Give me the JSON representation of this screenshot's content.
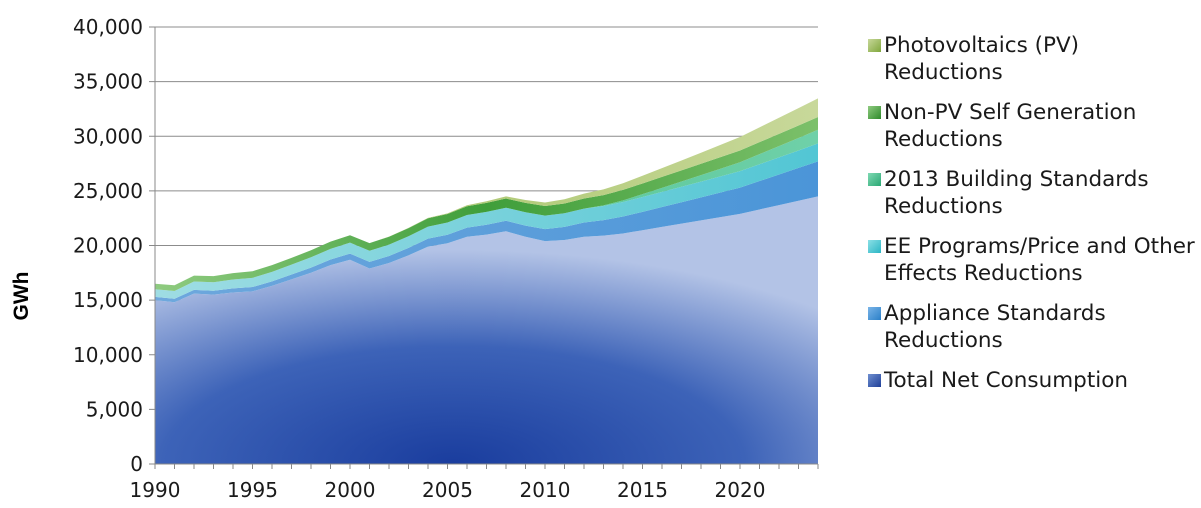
{
  "chart_data": {
    "type": "area",
    "stacked": true,
    "ylabel": "GWh",
    "xlabel": "",
    "ylim": [
      0,
      40000
    ],
    "xlim": [
      1990,
      2024
    ],
    "y_ticks": [
      "0",
      "5,000",
      "10,000",
      "15,000",
      "20,000",
      "25,000",
      "30,000",
      "35,000",
      "40,000"
    ],
    "y_tick_values": [
      0,
      5000,
      10000,
      15000,
      20000,
      25000,
      30000,
      35000,
      40000
    ],
    "x_ticks": [
      "1990",
      "1995",
      "2000",
      "2005",
      "2010",
      "2015",
      "2020"
    ],
    "x_tick_values": [
      1990,
      1995,
      2000,
      2005,
      2010,
      2015,
      2020
    ],
    "grid": "horizontal",
    "legend_position": "right",
    "x": [
      1990,
      1991,
      1992,
      1993,
      1994,
      1995,
      1996,
      1997,
      1998,
      1999,
      2000,
      2001,
      2002,
      2003,
      2004,
      2005,
      2006,
      2007,
      2008,
      2009,
      2010,
      2011,
      2012,
      2013,
      2014,
      2015,
      2016,
      2017,
      2018,
      2019,
      2020,
      2021,
      2022,
      2023,
      2024
    ],
    "series": [
      {
        "name": "Total Net Consumption",
        "color": "#2e56a8",
        "values": [
          15000,
          14800,
          15600,
          15500,
          15700,
          15800,
          16300,
          16900,
          17500,
          18200,
          18700,
          17900,
          18400,
          19100,
          19900,
          20200,
          20800,
          21000,
          21300,
          20800,
          20400,
          20500,
          20800,
          20900,
          21100,
          21400,
          21700,
          22000,
          22300,
          22600,
          22900,
          23300,
          23700,
          24100,
          24500
        ]
      },
      {
        "name": "Appliance Standards Reductions",
        "color": "#3a8fd6",
        "values": [
          300,
          320,
          340,
          360,
          380,
          400,
          420,
          450,
          480,
          520,
          560,
          600,
          640,
          680,
          730,
          780,
          840,
          900,
          960,
          1020,
          1100,
          1200,
          1300,
          1420,
          1550,
          1680,
          1820,
          1960,
          2100,
          2250,
          2400,
          2600,
          2800,
          3000,
          3200
        ]
      },
      {
        "name": "EE Programs/Price and Other Effects Reductions",
        "color": "#45c6d2",
        "values": [
          700,
          720,
          760,
          780,
          810,
          840,
          870,
          900,
          940,
          970,
          1000,
          1020,
          1040,
          1070,
          1100,
          1120,
          1150,
          1180,
          1200,
          1220,
          1230,
          1250,
          1280,
          1300,
          1330,
          1360,
          1390,
          1420,
          1450,
          1480,
          1510,
          1540,
          1570,
          1600,
          1650
        ]
      },
      {
        "name": "2013 Building Standards Reductions",
        "color": "#3dbd8a",
        "values": [
          0,
          0,
          0,
          0,
          0,
          0,
          0,
          0,
          0,
          0,
          0,
          0,
          0,
          0,
          0,
          0,
          0,
          0,
          0,
          0,
          0,
          0,
          0,
          50,
          150,
          260,
          370,
          480,
          590,
          700,
          810,
          920,
          1030,
          1140,
          1250
        ]
      },
      {
        "name": "Non-PV Self Generation Reductions",
        "color": "#3f9e3a",
        "values": [
          500,
          520,
          540,
          560,
          580,
          600,
          610,
          620,
          640,
          660,
          680,
          700,
          720,
          740,
          760,
          780,
          800,
          820,
          840,
          860,
          880,
          900,
          920,
          940,
          960,
          980,
          1000,
          1020,
          1040,
          1060,
          1080,
          1100,
          1120,
          1140,
          1160
        ]
      },
      {
        "name": "Photovoltaics (PV) Reductions",
        "color": "#9bbd57",
        "values": [
          0,
          0,
          0,
          0,
          0,
          0,
          0,
          0,
          0,
          0,
          0,
          0,
          10,
          20,
          40,
          60,
          100,
          150,
          200,
          260,
          320,
          380,
          450,
          530,
          610,
          700,
          800,
          900,
          1010,
          1120,
          1230,
          1350,
          1470,
          1590,
          1710
        ]
      }
    ]
  },
  "legend": {
    "items": [
      {
        "label": "Photovoltaics (PV) Reductions",
        "color": "#9bbd57"
      },
      {
        "label": "Non-PV Self Generation Reductions",
        "color": "#3f9e3a"
      },
      {
        "label": "2013 Building Standards Reductions",
        "color": "#3dbd8a"
      },
      {
        "label": "EE Programs/Price and Other Effects Reductions",
        "color": "#45c6d2"
      },
      {
        "label": "Appliance Standards Reductions",
        "color": "#3a8fd6"
      },
      {
        "label": "Total Net Consumption",
        "color": "#2e56a8"
      }
    ]
  }
}
